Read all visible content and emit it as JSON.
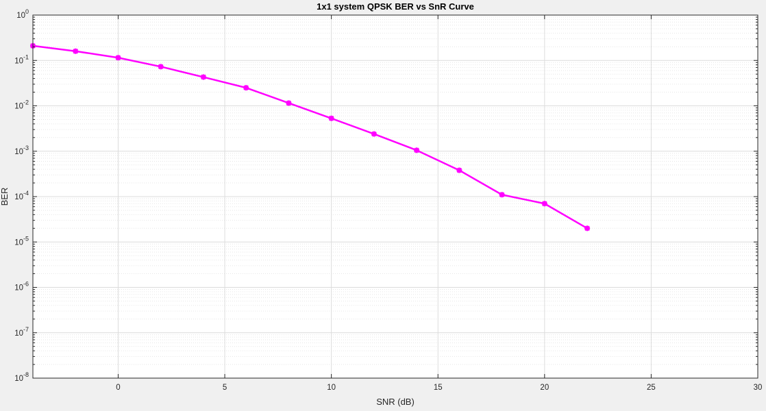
{
  "chart_data": {
    "type": "line",
    "title": "1x1 system QPSK BER vs SnR Curve",
    "xlabel": "SNR (dB)",
    "ylabel": "BER",
    "xlim": [
      -4,
      30
    ],
    "ylim_log10": [
      -8,
      0
    ],
    "yscale": "log",
    "grid": "on (major and minor)",
    "x_ticks": [
      0,
      5,
      10,
      15,
      20,
      25,
      30
    ],
    "y_ticks": [
      {
        "base": "10",
        "exp": "0"
      },
      {
        "base": "10",
        "exp": "-1"
      },
      {
        "base": "10",
        "exp": "-2"
      },
      {
        "base": "10",
        "exp": "-3"
      },
      {
        "base": "10",
        "exp": "-4"
      },
      {
        "base": "10",
        "exp": "-5"
      },
      {
        "base": "10",
        "exp": "-6"
      },
      {
        "base": "10",
        "exp": "-7"
      },
      {
        "base": "10",
        "exp": "-8"
      }
    ],
    "series": [
      {
        "color": "#ff00ff",
        "marker": "asterisk",
        "x": [
          -4,
          -2,
          0,
          2,
          4,
          6,
          8,
          10,
          12,
          14,
          16,
          18,
          20,
          22
        ],
        "y": [
          0.21,
          0.16,
          0.115,
          0.073,
          0.043,
          0.025,
          0.0115,
          0.0053,
          0.0024,
          0.00105,
          0.00038,
          0.00011,
          7e-05,
          2e-05
        ]
      }
    ]
  }
}
